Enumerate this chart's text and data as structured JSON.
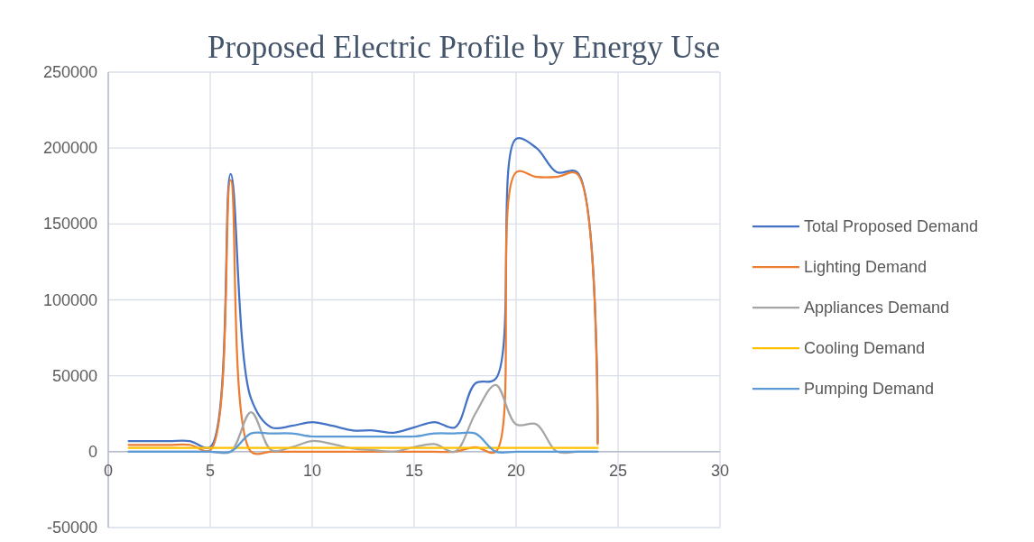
{
  "chart_data": {
    "type": "line",
    "title": "Proposed Electric Profile by Energy Use",
    "x": [
      1,
      2,
      3,
      4,
      5,
      6,
      7,
      8,
      9,
      10,
      11,
      12,
      13,
      14,
      15,
      16,
      17,
      18,
      19,
      20,
      21,
      22,
      23,
      24
    ],
    "series": [
      {
        "name": "Total Proposed Demand",
        "color": "#4472c4",
        "values": [
          7000,
          7000,
          7000,
          7000,
          3000,
          183000,
          35000,
          16000,
          17000,
          19500,
          17000,
          14000,
          14000,
          12500,
          16000,
          19500,
          16000,
          45000,
          48000,
          206000,
          200000,
          184000,
          184000,
          6000
        ]
      },
      {
        "name": "Lighting Demand",
        "color": "#ed7d31",
        "values": [
          4500,
          4500,
          4500,
          4500,
          1000,
          179000,
          0,
          0,
          0,
          0,
          0,
          0,
          0,
          0,
          0,
          0,
          0,
          3000,
          0,
          184000,
          181000,
          181000,
          183000,
          5000
        ]
      },
      {
        "name": "Appliances Demand",
        "color": "#a5a5a5",
        "values": [
          0,
          0,
          0,
          0,
          0,
          0,
          26000,
          1000,
          3000,
          7000,
          5000,
          2000,
          1000,
          0,
          3000,
          5000,
          0,
          25000,
          44000,
          18000,
          18000,
          0,
          0,
          0
        ]
      },
      {
        "name": "Cooling Demand",
        "color": "#ffc000",
        "values": [
          2500,
          2500,
          2500,
          2500,
          2500,
          2500,
          2500,
          2500,
          2500,
          2500,
          2500,
          2500,
          2500,
          2500,
          2500,
          2500,
          2500,
          2500,
          2500,
          2500,
          2500,
          2500,
          2500,
          2500
        ]
      },
      {
        "name": "Pumping Demand",
        "color": "#5b9bd5",
        "values": [
          0,
          0,
          0,
          0,
          0,
          0,
          12000,
          12000,
          12000,
          10000,
          10000,
          10000,
          10000,
          10000,
          10000,
          12000,
          12000,
          12000,
          0,
          0,
          0,
          0,
          0,
          0
        ]
      }
    ],
    "xlim": [
      0,
      30
    ],
    "xticks": [
      0,
      5,
      10,
      15,
      20,
      25,
      30
    ],
    "ylim": [
      -50000,
      250000
    ],
    "yticks": [
      -50000,
      0,
      50000,
      100000,
      150000,
      200000,
      250000
    ],
    "grid": true,
    "legend": "right",
    "marker": "none",
    "line_style": "solid"
  }
}
